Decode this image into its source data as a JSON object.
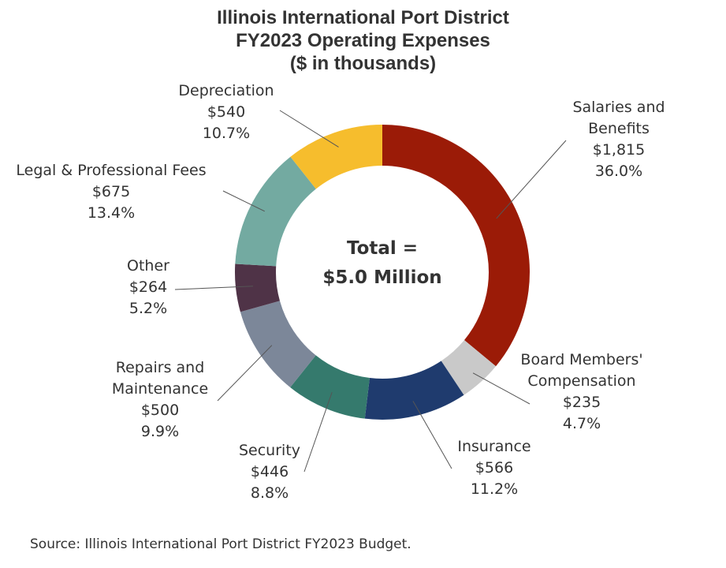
{
  "chart_data": {
    "type": "pie",
    "title_lines": [
      "Illinois International Port District",
      "FY2023 Operating Expenses",
      "($ in thousands)"
    ],
    "center_label": [
      "Total =",
      "$5.0 Million"
    ],
    "slices": [
      {
        "name_lines": [
          "Salaries and",
          "Benefits"
        ],
        "value": 1815,
        "value_label": "$1,815",
        "percent_label": "36.0%",
        "color": "#9b1b07"
      },
      {
        "name_lines": [
          "Board Members'",
          "Compensation"
        ],
        "value": 235,
        "value_label": "$235",
        "percent_label": "4.7%",
        "color": "#c9c9c9"
      },
      {
        "name_lines": [
          "Insurance"
        ],
        "value": 566,
        "value_label": "$566",
        "percent_label": "11.2%",
        "color": "#1f3b6e"
      },
      {
        "name_lines": [
          "Security"
        ],
        "value": 446,
        "value_label": "$446",
        "percent_label": "8.8%",
        "color": "#357a6d"
      },
      {
        "name_lines": [
          "Repairs and",
          "Maintenance"
        ],
        "value": 500,
        "value_label": "$500",
        "percent_label": "9.9%",
        "color": "#7c8799"
      },
      {
        "name_lines": [
          "Other"
        ],
        "value": 264,
        "value_label": "$264",
        "percent_label": "5.2%",
        "color": "#4f3347"
      },
      {
        "name_lines": [
          "Legal & Professional Fees"
        ],
        "value": 675,
        "value_label": "$675",
        "percent_label": "13.4%",
        "color": "#73aaa1"
      },
      {
        "name_lines": [
          "Depreciation"
        ],
        "value": 540,
        "value_label": "$540",
        "percent_label": "10.7%",
        "color": "#f6bd2d"
      }
    ],
    "source": "Source: Illinois International Port District FY2023 Budget."
  }
}
